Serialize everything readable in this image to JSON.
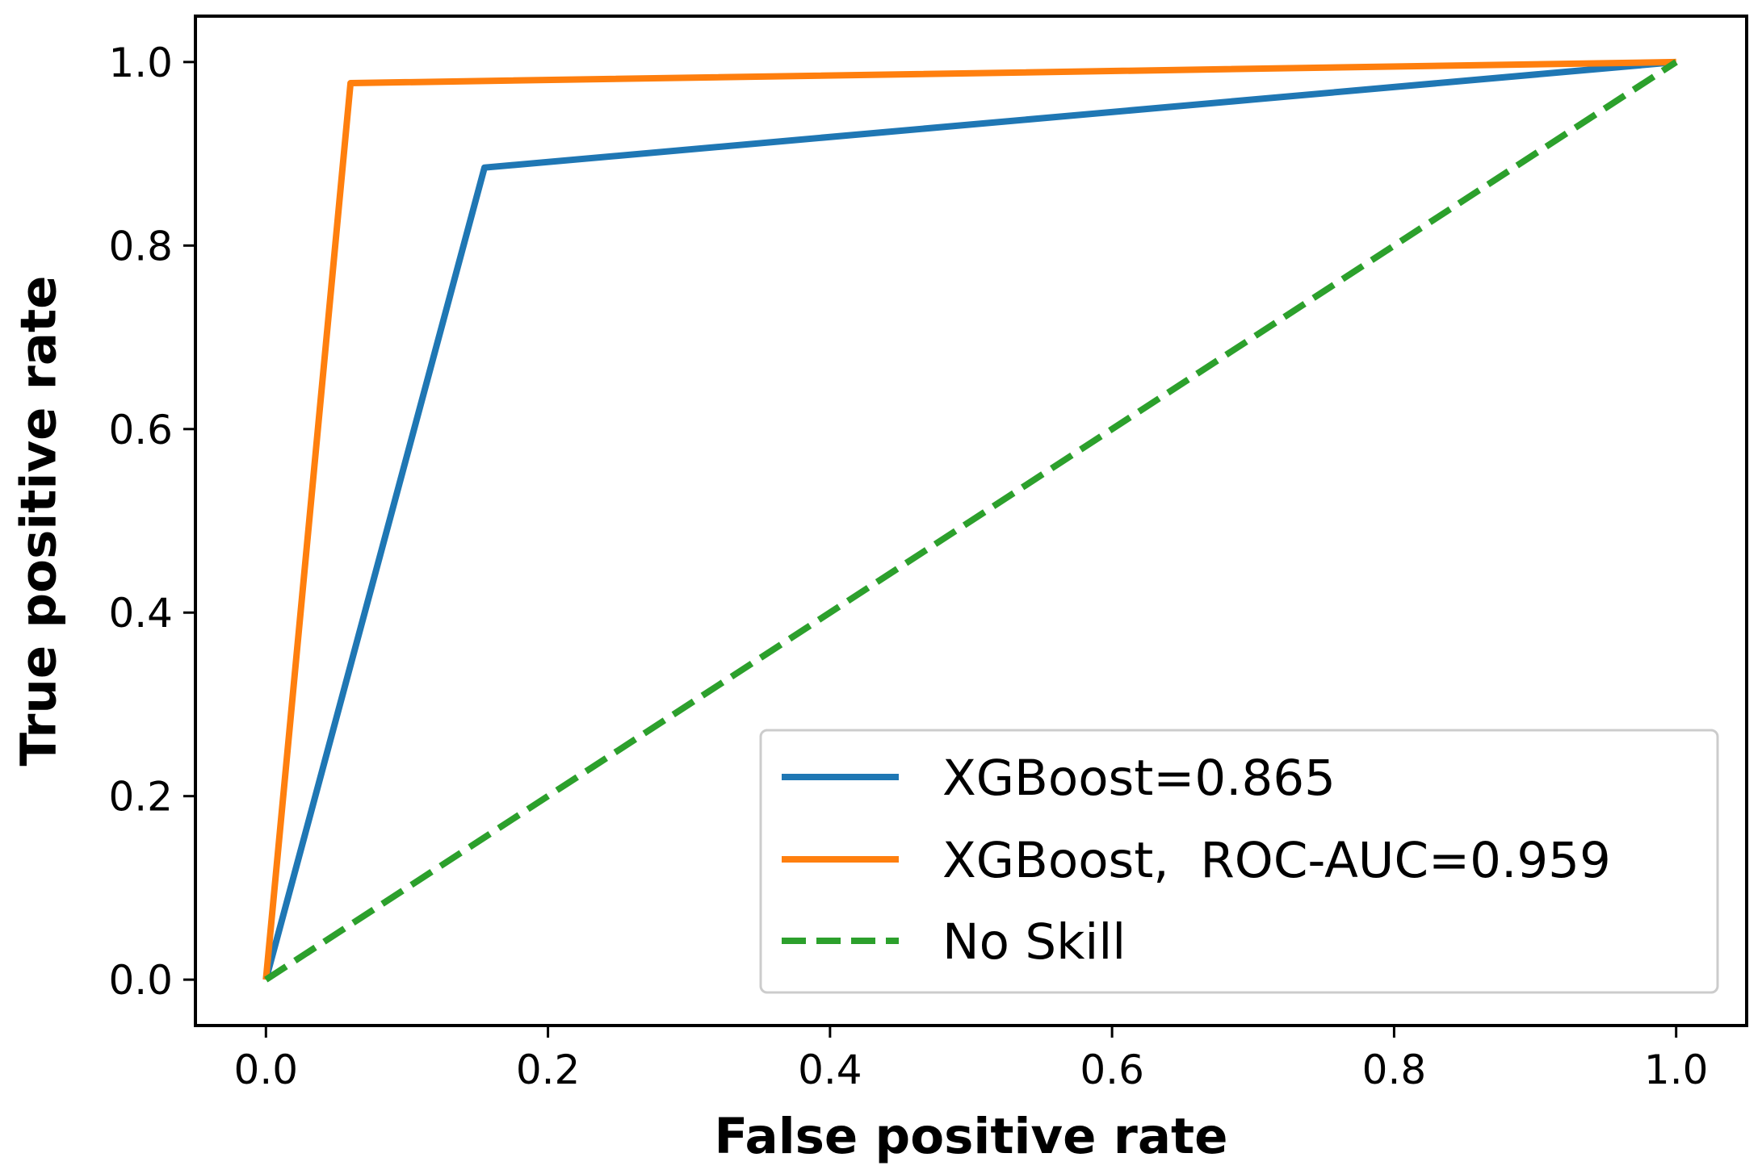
{
  "chart_data": {
    "type": "line",
    "title": "",
    "xlabel": "False positive rate",
    "ylabel": "True positive rate",
    "xlim": [
      -0.05,
      1.05
    ],
    "ylim": [
      -0.05,
      1.05
    ],
    "xticks": [
      0.0,
      0.2,
      0.4,
      0.6,
      0.8,
      1.0
    ],
    "yticks": [
      0.0,
      0.2,
      0.4,
      0.6,
      0.8,
      1.0
    ],
    "xtick_labels": [
      "0.0",
      "0.2",
      "0.4",
      "0.6",
      "0.8",
      "1.0"
    ],
    "ytick_labels": [
      "0.0",
      "0.2",
      "0.4",
      "0.6",
      "0.8",
      "1.0"
    ],
    "grid": false,
    "legend_position": "lower-right",
    "series": [
      {
        "name": "XGBoost=0.865",
        "color": "#1f77b4",
        "style": "solid",
        "x": [
          0.0,
          0.155,
          1.0
        ],
        "y": [
          0.0,
          0.885,
          1.0
        ]
      },
      {
        "name": "XGBoost,  ROC-AUC=0.959",
        "color": "#ff7f0e",
        "style": "solid",
        "x": [
          0.0,
          0.06,
          1.0
        ],
        "y": [
          0.0,
          0.977,
          1.0
        ]
      },
      {
        "name": "No Skill",
        "color": "#2ca02c",
        "style": "dashed",
        "x": [
          0.0,
          1.0
        ],
        "y": [
          0.0,
          1.0
        ]
      }
    ]
  }
}
